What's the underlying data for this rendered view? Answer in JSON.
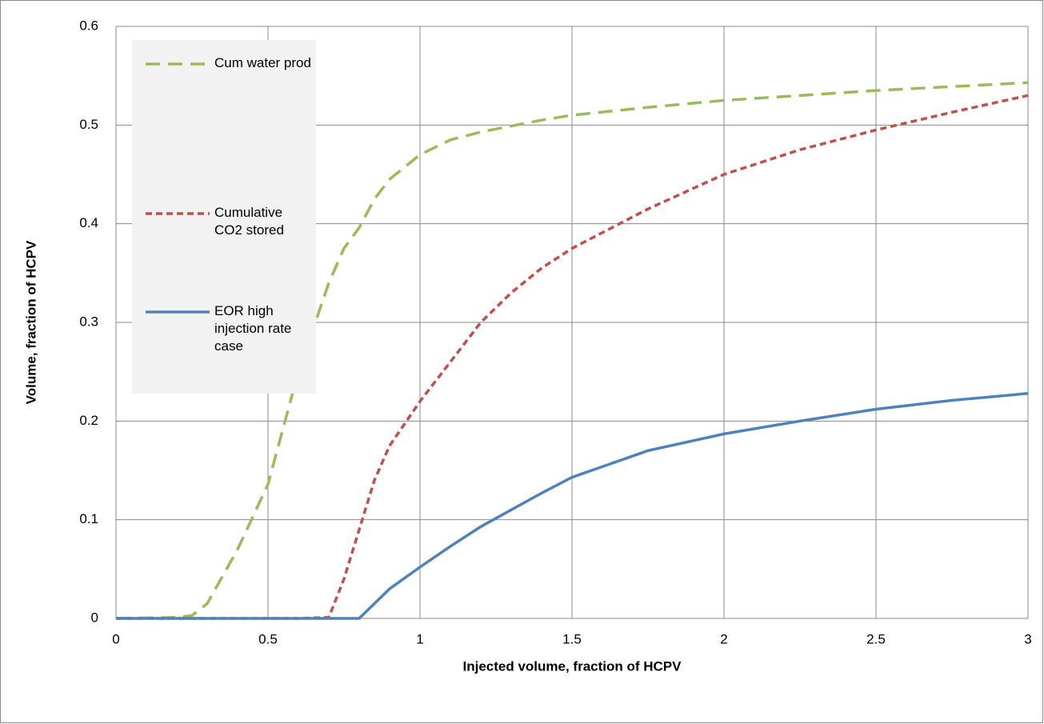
{
  "chart_data": {
    "type": "line",
    "x_label": "Injected volume, fraction of HCPV",
    "y_label": "Volume, fraction of HCPV",
    "x": [
      0,
      0.2,
      0.25,
      0.3,
      0.4,
      0.5,
      0.6,
      0.7,
      0.75,
      0.8,
      0.85,
      0.9,
      1,
      1.1,
      1.2,
      1.3,
      1.4,
      1.5,
      1.75,
      2,
      2.25,
      2.5,
      2.75,
      3
    ],
    "series": [
      {
        "name": "Cum water prod",
        "color": "#9bbb59",
        "dash": "dashed",
        "values": [
          0,
          0.001,
          0.003,
          0.015,
          0.07,
          0.136,
          0.25,
          0.34,
          0.375,
          0.396,
          0.425,
          0.445,
          0.47,
          0.485,
          0.493,
          0.499,
          0.505,
          0.51,
          0.518,
          0.525,
          0.53,
          0.535,
          0.539,
          0.543
        ]
      },
      {
        "name": "Cumulative CO2 stored",
        "color": "#c0504d",
        "dash": "dotted",
        "values": [
          0,
          0,
          0,
          0,
          0,
          0,
          0,
          0.001,
          0.04,
          0.09,
          0.14,
          0.175,
          0.22,
          0.26,
          0.3,
          0.33,
          0.355,
          0.375,
          0.415,
          0.45,
          0.475,
          0.495,
          0.513,
          0.53
        ]
      },
      {
        "name": "EOR high injection rate case",
        "color": "#4f81bd",
        "dash": "solid",
        "values": [
          0,
          0,
          0,
          0,
          0,
          0,
          0,
          0,
          0,
          0,
          0.015,
          0.03,
          0.052,
          0.073,
          0.093,
          0.11,
          0.127,
          0.143,
          0.17,
          0.187,
          0.2,
          0.212,
          0.221,
          0.228
        ]
      }
    ],
    "xlim": [
      0,
      3
    ],
    "xticks": [
      0,
      0.5,
      1,
      1.5,
      2,
      2.5,
      3
    ],
    "ylim": [
      0,
      0.6
    ],
    "yticks": [
      0,
      0.1,
      0.2,
      0.3,
      0.4,
      0.5,
      0.6
    ],
    "grid": true,
    "legend": "upper left"
  }
}
